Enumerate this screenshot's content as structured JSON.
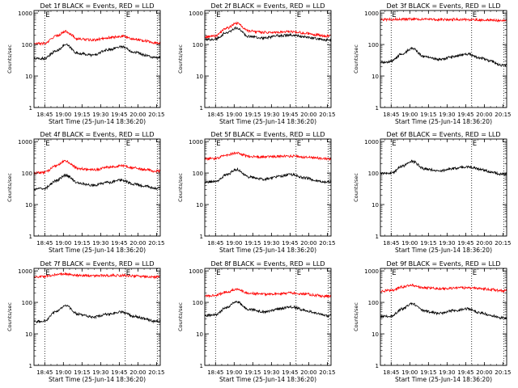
{
  "chart_data": [
    {
      "type": "line",
      "title": "Det 1f BLACK = Events, RED = LLD",
      "xlabel": "Start Time (25-Jun-14 18:36:20)",
      "ylabel": "Counts/sec",
      "yscale": "log",
      "ylim": [
        1,
        1200
      ],
      "xlim": [
        18.6056,
        20.3
      ],
      "xticks": [
        "18:45",
        "19:00",
        "19:15",
        "19:30",
        "19:45",
        "20:00",
        "20:15"
      ],
      "yticks": [
        "1",
        "10",
        "100",
        "1000"
      ],
      "markers": [
        "E",
        "E"
      ],
      "vlines": [
        18.75,
        19.83,
        20.26
      ],
      "series": [
        {
          "name": "Events",
          "color": "#000000",
          "x": [
            18.61,
            18.75,
            18.9,
            19.03,
            19.2,
            19.4,
            19.6,
            19.78,
            19.95,
            20.1,
            20.22
          ],
          "values": [
            35,
            36,
            62,
            98,
            52,
            46,
            68,
            86,
            58,
            46,
            38
          ]
        },
        {
          "name": "LLD",
          "color": "#ff0000",
          "x": [
            18.61,
            18.75,
            18.9,
            19.03,
            19.2,
            19.4,
            19.6,
            19.78,
            19.95,
            20.1,
            20.22
          ],
          "values": [
            105,
            108,
            185,
            260,
            150,
            138,
            165,
            182,
            150,
            130,
            112
          ]
        }
      ]
    },
    {
      "type": "line",
      "title": "Det 2f BLACK = Events, RED = LLD",
      "xlabel": "Start Time (25-Jun-14 18:36:20)",
      "ylabel": "Counts/sec",
      "yscale": "log",
      "ylim": [
        1,
        1200
      ],
      "xlim": [
        18.6056,
        20.3
      ],
      "xticks": [
        "18:45",
        "19:00",
        "19:15",
        "19:30",
        "19:45",
        "20:00",
        "20:15"
      ],
      "yticks": [
        "1",
        "10",
        "100",
        "1000"
      ],
      "markers": [
        "E",
        "E"
      ],
      "vlines": [
        18.75,
        19.83,
        20.26
      ],
      "series": [
        {
          "name": "Events",
          "color": "#000000",
          "x": [
            18.61,
            18.75,
            18.9,
            19.03,
            19.2,
            19.4,
            19.6,
            19.78,
            19.95,
            20.1,
            20.22
          ],
          "values": [
            140,
            150,
            240,
            330,
            180,
            160,
            190,
            200,
            175,
            155,
            140
          ]
        },
        {
          "name": "LLD",
          "color": "#ff0000",
          "x": [
            18.61,
            18.75,
            18.9,
            19.03,
            19.2,
            19.4,
            19.6,
            19.78,
            19.95,
            20.1,
            20.22
          ],
          "values": [
            175,
            185,
            330,
            470,
            270,
            240,
            250,
            255,
            230,
            205,
            185
          ]
        }
      ]
    },
    {
      "type": "line",
      "title": "Det 3f BLACK = Events, RED = LLD",
      "xlabel": "Start Time (25-Jun-14 18:36:20)",
      "ylabel": "Counts/sec",
      "yscale": "log",
      "ylim": [
        1,
        1200
      ],
      "xlim": [
        18.6056,
        20.3
      ],
      "xticks": [
        "18:45",
        "19:00",
        "19:15",
        "19:30",
        "19:45",
        "20:00",
        "20:15"
      ],
      "yticks": [
        "1",
        "10",
        "100",
        "1000"
      ],
      "markers": [
        "E",
        "E"
      ],
      "vlines": [
        18.75,
        19.83,
        20.26
      ],
      "series": [
        {
          "name": "Events",
          "color": "#000000",
          "x": [
            18.61,
            18.75,
            18.9,
            19.03,
            19.2,
            19.4,
            19.6,
            19.78,
            19.95,
            20.1,
            20.22
          ],
          "values": [
            27,
            29,
            52,
            75,
            40,
            33,
            42,
            50,
            37,
            29,
            22
          ]
        },
        {
          "name": "LLD",
          "color": "#ff0000",
          "x": [
            18.61,
            18.75,
            18.9,
            19.03,
            19.2,
            19.4,
            19.6,
            19.78,
            19.95,
            20.1,
            20.22
          ],
          "values": [
            620,
            620,
            640,
            640,
            625,
            620,
            620,
            615,
            605,
            590,
            575
          ]
        }
      ]
    },
    {
      "type": "line",
      "title": "Det 4f BLACK = Events, RED = LLD",
      "xlabel": "Start Time (25-Jun-14 18:36:20)",
      "ylabel": "Counts/sec",
      "yscale": "log",
      "ylim": [
        1,
        1200
      ],
      "xlim": [
        18.6056,
        20.3
      ],
      "xticks": [
        "18:45",
        "19:00",
        "19:15",
        "19:30",
        "19:45",
        "20:00",
        "20:15"
      ],
      "yticks": [
        "1",
        "10",
        "100",
        "1000"
      ],
      "markers": [
        "E",
        "E"
      ],
      "vlines": [
        18.75,
        19.83,
        20.26
      ],
      "series": [
        {
          "name": "Events",
          "color": "#000000",
          "x": [
            18.61,
            18.75,
            18.9,
            19.03,
            19.2,
            19.4,
            19.6,
            19.78,
            19.95,
            20.1,
            20.22
          ],
          "values": [
            30,
            33,
            57,
            85,
            48,
            41,
            50,
            60,
            44,
            38,
            33
          ]
        },
        {
          "name": "LLD",
          "color": "#ff0000",
          "x": [
            18.61,
            18.75,
            18.9,
            19.03,
            19.2,
            19.4,
            19.6,
            19.78,
            19.95,
            20.1,
            20.22
          ],
          "values": [
            100,
            105,
            170,
            240,
            140,
            125,
            150,
            170,
            145,
            128,
            115
          ]
        }
      ]
    },
    {
      "type": "line",
      "title": "Det 5f BLACK = Events, RED = LLD",
      "xlabel": "Start Time (25-Jun-14 18:36:20)",
      "ylabel": "Counts/sec",
      "yscale": "log",
      "ylim": [
        1,
        1200
      ],
      "xlim": [
        18.6056,
        20.3
      ],
      "xticks": [
        "18:45",
        "19:00",
        "19:15",
        "19:30",
        "19:45",
        "20:00",
        "20:15"
      ],
      "yticks": [
        "1",
        "10",
        "100",
        "1000"
      ],
      "markers": [
        "E",
        "E"
      ],
      "vlines": [
        18.75,
        19.83,
        20.26
      ],
      "series": [
        {
          "name": "Events",
          "color": "#000000",
          "x": [
            18.61,
            18.75,
            18.9,
            19.03,
            19.2,
            19.4,
            19.6,
            19.78,
            19.95,
            20.1,
            20.22
          ],
          "values": [
            52,
            55,
            88,
            130,
            75,
            64,
            78,
            90,
            70,
            58,
            52
          ]
        },
        {
          "name": "LLD",
          "color": "#ff0000",
          "x": [
            18.61,
            18.75,
            18.9,
            19.03,
            19.2,
            19.4,
            19.6,
            19.78,
            19.95,
            20.1,
            20.22
          ],
          "values": [
            280,
            290,
            380,
            440,
            340,
            320,
            335,
            345,
            320,
            300,
            280
          ]
        }
      ]
    },
    {
      "type": "line",
      "title": "Det 6f BLACK = Events, RED = LLD",
      "xlabel": "Start Time (25-Jun-14 18:36:20)",
      "ylabel": "Counts/sec",
      "yscale": "log",
      "ylim": [
        1,
        1200
      ],
      "xlim": [
        18.6056,
        20.3
      ],
      "xticks": [
        "18:45",
        "19:00",
        "19:15",
        "19:30",
        "19:45",
        "20:00",
        "20:15"
      ],
      "yticks": [
        "1",
        "10",
        "100",
        "1000"
      ],
      "markers": [
        "E",
        "E"
      ],
      "vlines": [
        18.75,
        19.83,
        20.26
      ],
      "series": [
        {
          "name": "Events",
          "color": "#000000",
          "x": [
            18.61,
            18.75,
            18.9,
            19.03,
            19.2,
            19.4,
            19.6,
            19.78,
            19.95,
            20.1,
            20.22
          ],
          "values": [
            95,
            100,
            165,
            235,
            135,
            118,
            140,
            160,
            130,
            108,
            92
          ]
        }
      ]
    },
    {
      "type": "line",
      "title": "Det 7f BLACK = Events, RED = LLD",
      "xlabel": "Start Time (25-Jun-14 18:36:20)",
      "ylabel": "Counts/sec",
      "yscale": "log",
      "ylim": [
        1,
        1200
      ],
      "xlim": [
        18.6056,
        20.3
      ],
      "xticks": [
        "18:45",
        "19:00",
        "19:15",
        "19:30",
        "19:45",
        "20:00",
        "20:15"
      ],
      "yticks": [
        "1",
        "10",
        "100",
        "1000"
      ],
      "markers": [
        "E",
        "E"
      ],
      "vlines": [
        18.75,
        19.83,
        20.26
      ],
      "series": [
        {
          "name": "Events",
          "color": "#000000",
          "x": [
            18.61,
            18.75,
            18.9,
            19.03,
            19.2,
            19.4,
            19.6,
            19.78,
            19.95,
            20.1,
            20.22
          ],
          "values": [
            24,
            26,
            50,
            78,
            42,
            34,
            42,
            50,
            36,
            30,
            25
          ]
        },
        {
          "name": "LLD",
          "color": "#ff0000",
          "x": [
            18.61,
            18.75,
            18.9,
            19.03,
            19.2,
            19.4,
            19.6,
            19.78,
            19.95,
            20.1,
            20.22
          ],
          "values": [
            650,
            680,
            760,
            790,
            720,
            700,
            715,
            720,
            690,
            670,
            640
          ]
        }
      ]
    },
    {
      "type": "line",
      "title": "Det 8f BLACK = Events, RED = LLD",
      "xlabel": "Start Time (25-Jun-14 18:36:20)",
      "ylabel": "Counts/sec",
      "yscale": "log",
      "ylim": [
        1,
        1200
      ],
      "xlim": [
        18.6056,
        20.3
      ],
      "xticks": [
        "18:45",
        "19:00",
        "19:15",
        "19:30",
        "19:45",
        "20:00",
        "20:15"
      ],
      "yticks": [
        "1",
        "10",
        "100",
        "1000"
      ],
      "markers": [
        "E",
        "E"
      ],
      "vlines": [
        18.75,
        19.83,
        20.26
      ],
      "series": [
        {
          "name": "Events",
          "color": "#000000",
          "x": [
            18.61,
            18.75,
            18.9,
            19.03,
            19.2,
            19.4,
            19.6,
            19.78,
            19.95,
            20.1,
            20.22
          ],
          "values": [
            38,
            41,
            70,
            105,
            60,
            50,
            62,
            72,
            56,
            45,
            38
          ]
        },
        {
          "name": "LLD",
          "color": "#ff0000",
          "x": [
            18.61,
            18.75,
            18.9,
            19.03,
            19.2,
            19.4,
            19.6,
            19.78,
            19.95,
            20.1,
            20.22
          ],
          "values": [
            160,
            170,
            215,
            255,
            195,
            180,
            190,
            200,
            185,
            168,
            155
          ]
        }
      ]
    },
    {
      "type": "line",
      "title": "Det 9f BLACK = Events, RED = LLD",
      "xlabel": "Start Time (25-Jun-14 18:36:20)",
      "ylabel": "Counts/sec",
      "yscale": "log",
      "ylim": [
        1,
        1200
      ],
      "xlim": [
        18.6056,
        20.3
      ],
      "xticks": [
        "18:45",
        "19:00",
        "19:15",
        "19:30",
        "19:45",
        "20:00",
        "20:15"
      ],
      "yticks": [
        "1",
        "10",
        "100",
        "1000"
      ],
      "markers": [
        "E",
        "E"
      ],
      "vlines": [
        18.75,
        19.83,
        20.26
      ],
      "series": [
        {
          "name": "Events",
          "color": "#000000",
          "x": [
            18.61,
            18.75,
            18.9,
            19.03,
            19.2,
            19.4,
            19.6,
            19.78,
            19.95,
            20.1,
            20.22
          ],
          "values": [
            35,
            37,
            62,
            92,
            52,
            45,
            55,
            62,
            46,
            38,
            32
          ]
        },
        {
          "name": "LLD",
          "color": "#ff0000",
          "x": [
            18.61,
            18.75,
            18.9,
            19.03,
            19.2,
            19.4,
            19.6,
            19.78,
            19.95,
            20.1,
            20.22
          ],
          "values": [
            230,
            240,
            310,
            350,
            290,
            275,
            285,
            290,
            275,
            255,
            235
          ]
        }
      ]
    }
  ]
}
